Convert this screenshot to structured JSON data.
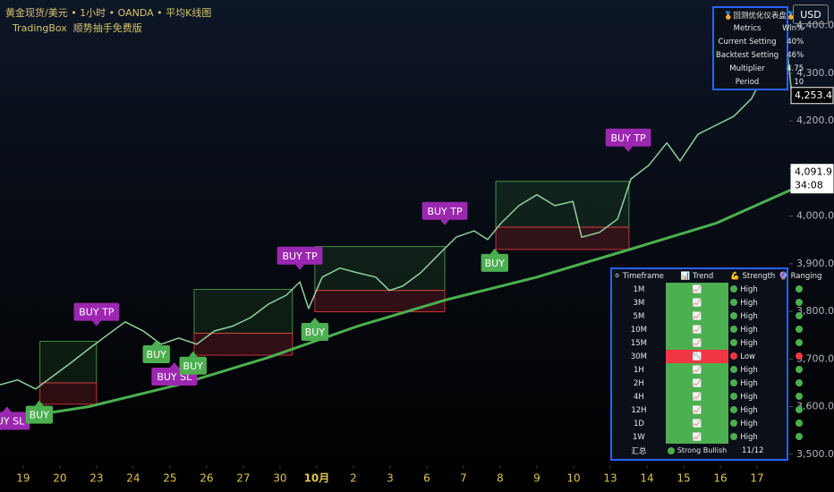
{
  "header": {
    "title": "黄金现货/美元 • 1小时 • OANDA • 平均K线图",
    "subtitle": "TradingBox  顺势抽手免费版",
    "currency": "USD"
  },
  "chart_data": {
    "type": "line",
    "xlim": [
      -0.63,
      20.95
    ],
    "ylim": [
      3477,
      4454
    ],
    "xticks": [
      {
        "value": 0,
        "label": "19"
      },
      {
        "value": 1,
        "label": "20"
      },
      {
        "value": 2,
        "label": "23"
      },
      {
        "value": 3,
        "label": "24"
      },
      {
        "value": 4,
        "label": "25"
      },
      {
        "value": 5,
        "label": "26"
      },
      {
        "value": 6,
        "label": "27"
      },
      {
        "value": 7,
        "label": "30"
      },
      {
        "value": 8,
        "label": "10月"
      },
      {
        "value": 9,
        "label": "2"
      },
      {
        "value": 10,
        "label": "3"
      },
      {
        "value": 11,
        "label": "6"
      },
      {
        "value": 12,
        "label": "7"
      },
      {
        "value": 13,
        "label": "8"
      },
      {
        "value": 14,
        "label": "9"
      },
      {
        "value": 15,
        "label": "10"
      },
      {
        "value": 16,
        "label": "13"
      },
      {
        "value": 17,
        "label": "14"
      },
      {
        "value": 18,
        "label": "15"
      },
      {
        "value": 19,
        "label": "16"
      },
      {
        "value": 20,
        "label": "17"
      }
    ],
    "yticks": [
      {
        "value": 3500,
        "label": "3,500.0"
      },
      {
        "value": 3600,
        "label": "3,600.0"
      },
      {
        "value": 3700,
        "label": "3,700.0"
      },
      {
        "value": 3800,
        "label": "3,800.0"
      },
      {
        "value": 3900,
        "label": "3,900.0"
      },
      {
        "value": 4000,
        "label": "4,000.0"
      },
      {
        "value": 4100,
        "label": "4,100.0"
      },
      {
        "value": 4200,
        "label": "4,200.0"
      },
      {
        "value": 4300,
        "label": "4,300.0"
      },
      {
        "value": 4400,
        "label": "4,400.0"
      }
    ],
    "series": [
      {
        "color": "#8fd19e",
        "x": [
          -0.63,
          -0.15,
          0.34,
          0.83,
          1.32,
          1.8,
          2.29,
          2.78,
          3.27,
          3.76,
          4.24,
          4.73,
          5.22,
          5.71,
          6.2,
          6.68,
          7.17,
          7.54,
          7.78,
          8.15,
          8.63,
          9.12,
          9.61,
          9.98,
          10.34,
          10.83,
          11.32,
          11.8,
          12.29,
          12.66,
          13.02,
          13.51,
          14.0,
          14.49,
          14.98,
          15.22,
          15.71,
          16.2,
          16.56,
          17.05,
          17.54,
          17.9,
          18.39,
          18.88,
          19.37,
          19.85,
          20.22,
          20.59,
          20.83,
          20.95
        ],
        "values": [
          3646,
          3656,
          3637,
          3665,
          3693,
          3722,
          3750,
          3778,
          3759,
          3731,
          3744,
          3731,
          3759,
          3769,
          3787,
          3815,
          3834,
          3862,
          3806,
          3872,
          3891,
          3881,
          3872,
          3844,
          3853,
          3881,
          3919,
          3956,
          3969,
          3951,
          3985,
          4022,
          4045,
          4022,
          4031,
          3956,
          3966,
          3994,
          4078,
          4107,
          4154,
          4116,
          4172,
          4191,
          4210,
          4247,
          4304,
          4369,
          4341,
          4253
        ]
      },
      {
        "color": "#4caf50",
        "x": [
          -0.63,
          1.8,
          4.24,
          6.68,
          9.12,
          11.56,
          14.0,
          16.44,
          18.88,
          20.95
        ],
        "values": [
          3571,
          3600,
          3646,
          3703,
          3769,
          3825,
          3872,
          3928,
          3985,
          4056
        ]
      }
    ],
    "zones": [
      {
        "x0": 0.46,
        "x1": 2.0,
        "top": 3737,
        "mid": 3650,
        "bottom": 3605
      },
      {
        "x0": 4.66,
        "x1": 7.34,
        "top": 3846,
        "mid": 3754,
        "bottom": 3708
      },
      {
        "x0": 7.95,
        "x1": 11.49,
        "top": 3936,
        "mid": 3844,
        "bottom": 3799
      },
      {
        "x0": 12.88,
        "x1": 16.51,
        "top": 4073,
        "mid": 3977,
        "bottom": 3930
      }
    ],
    "signals": [
      {
        "label": "BUY SL",
        "x": -0.44,
        "y": 3600,
        "placement": "below",
        "color": "#9c27b0"
      },
      {
        "label": "BUY",
        "x": 0.44,
        "y": 3613,
        "placement": "below",
        "color": "#4caf50"
      },
      {
        "label": "BUY TP",
        "x": 2.0,
        "y": 3769,
        "placement": "above",
        "color": "#9c27b0"
      },
      {
        "label": "BUY",
        "x": 3.63,
        "y": 3740,
        "placement": "below",
        "color": "#4caf50"
      },
      {
        "label": "BUY SL",
        "x": 4.12,
        "y": 3693,
        "placement": "below",
        "color": "#9c27b0"
      },
      {
        "label": "BUY",
        "x": 4.63,
        "y": 3716,
        "placement": "below",
        "color": "#4caf50"
      },
      {
        "label": "BUY TP",
        "x": 7.54,
        "y": 3887,
        "placement": "above",
        "color": "#9c27b0"
      },
      {
        "label": "BUY",
        "x": 7.95,
        "y": 3787,
        "placement": "below",
        "color": "#4caf50"
      },
      {
        "label": "BUY TP",
        "x": 11.49,
        "y": 3981,
        "placement": "above",
        "color": "#9c27b0"
      },
      {
        "label": "BUY",
        "x": 12.85,
        "y": 3932,
        "placement": "below",
        "color": "#4caf50"
      },
      {
        "label": "BUY TP",
        "x": 16.49,
        "y": 4135,
        "placement": "above",
        "color": "#9c27b0"
      }
    ],
    "price_labels": [
      {
        "value": 4253.4,
        "label": "4,253.4"
      },
      {
        "value": 4091.9,
        "label": "4,091.9",
        "countdown": "34:08"
      }
    ]
  },
  "backtest_table": {
    "title": "🏅回测优化仪表盘🏅",
    "rows": [
      [
        "Metrics",
        "Win%"
      ],
      [
        "Current Setting",
        "40%"
      ],
      [
        "Backtest Setting",
        "46%"
      ],
      [
        "Multiplier",
        "4.75"
      ],
      [
        "Period",
        "10"
      ]
    ]
  },
  "signal_table": {
    "header": [
      "⚪ Timeframe",
      "📊 Trend",
      "💪 Strength",
      "🔮 Ranging"
    ],
    "rows": [
      {
        "timeframe": "1M",
        "trend": "📈",
        "strength": "High",
        "color": "#4caf50"
      },
      {
        "timeframe": "3M",
        "trend": "📈",
        "strength": "High",
        "color": "#4caf50"
      },
      {
        "timeframe": "5M",
        "trend": "📈",
        "strength": "High",
        "color": "#4caf50"
      },
      {
        "timeframe": "10M",
        "trend": "📈",
        "strength": "High",
        "color": "#4caf50"
      },
      {
        "timeframe": "15M",
        "trend": "📈",
        "strength": "High",
        "color": "#4caf50"
      },
      {
        "timeframe": "30M",
        "trend": "📉",
        "strength": "Low",
        "color": "#f23645"
      },
      {
        "timeframe": "1H",
        "trend": "📈",
        "strength": "High",
        "color": "#4caf50"
      },
      {
        "timeframe": "2H",
        "trend": "📈",
        "strength": "High",
        "color": "#4caf50"
      },
      {
        "timeframe": "4H",
        "trend": "📈",
        "strength": "High",
        "color": "#4caf50"
      },
      {
        "timeframe": "12H",
        "trend": "📈",
        "strength": "High",
        "color": "#4caf50"
      },
      {
        "timeframe": "1D",
        "trend": "📈",
        "strength": "High",
        "color": "#4caf50"
      },
      {
        "timeframe": "1W",
        "trend": "📈",
        "strength": "High",
        "color": "#4caf50"
      }
    ],
    "summary": {
      "label": "汇总",
      "trend": "Strong Bullish",
      "score": "11/12",
      "color": "#4caf50"
    }
  }
}
